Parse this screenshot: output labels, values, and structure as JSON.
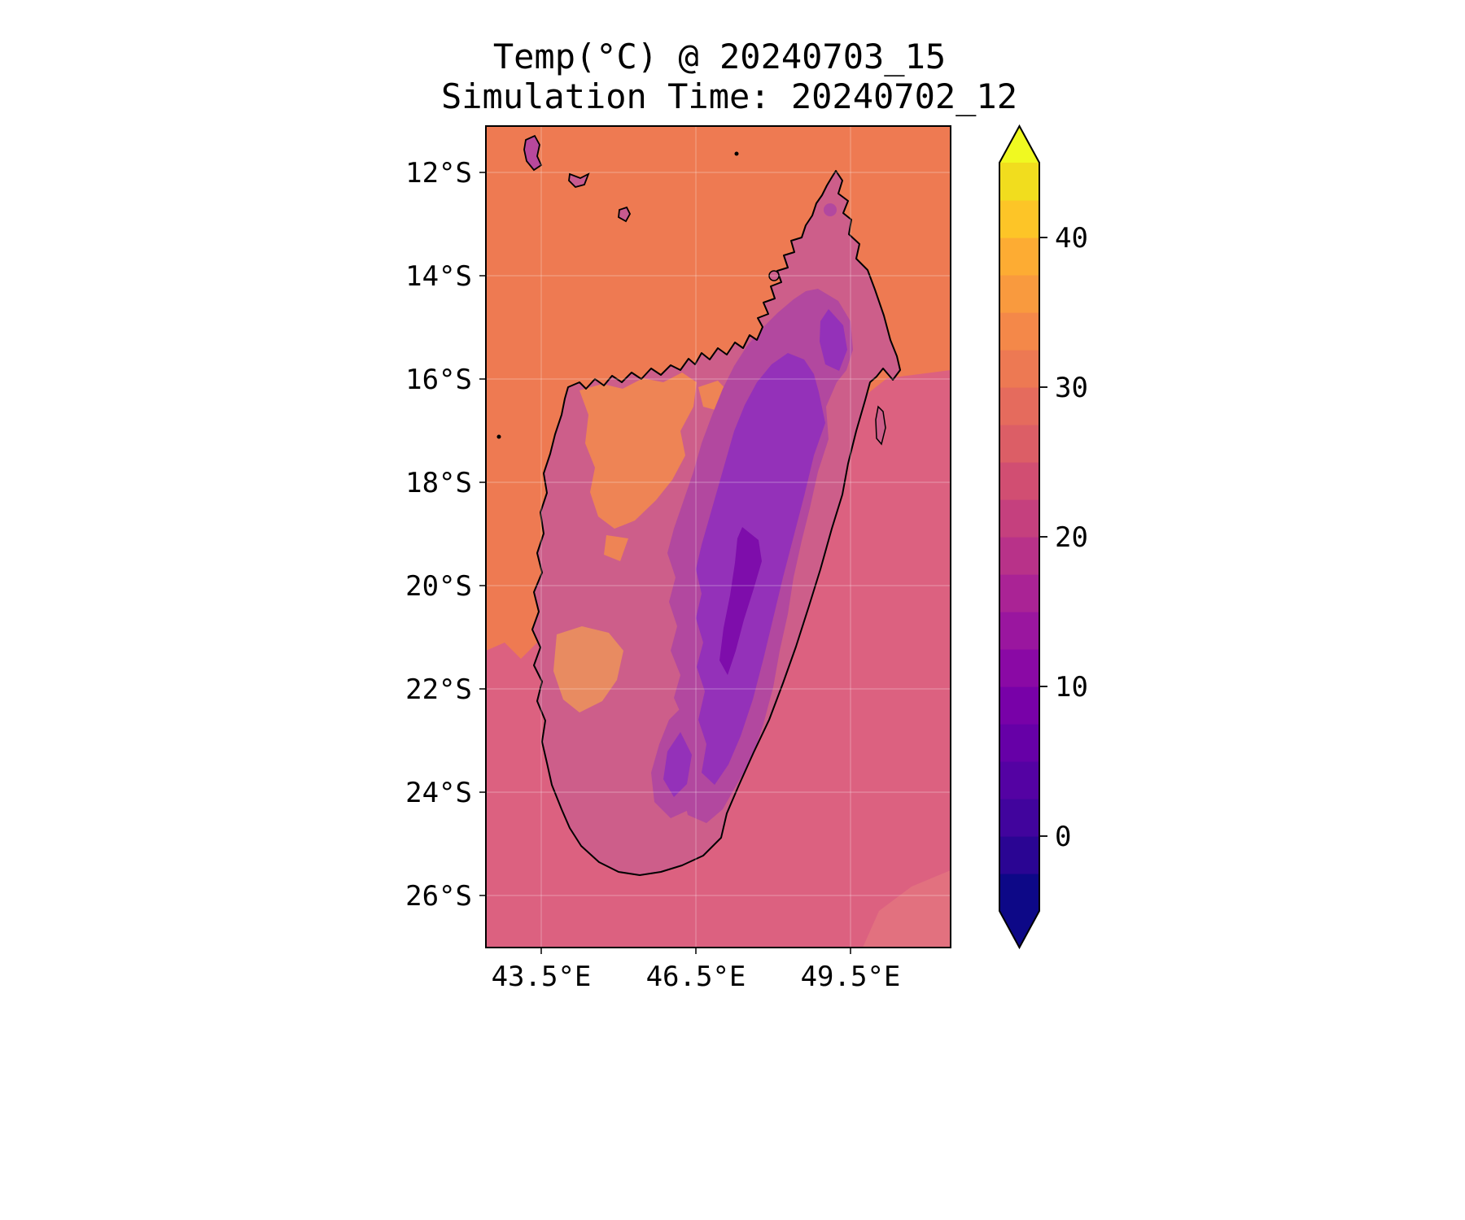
{
  "figure": {
    "title": "Temp(°C) @ 20240703_15",
    "subtitle": "Simulation Time: 20240702_12"
  },
  "chart_data": {
    "type": "heatmap",
    "title": "Temp(°C) @ 20240703_15",
    "subtitle": "Simulation Time: 20240702_12",
    "variable": "Temperature",
    "units": "°C",
    "valid_time": "20240703_15",
    "simulation_time": "20240702_12",
    "region": "Madagascar and surrounding ocean",
    "x_axis": {
      "tick_labels": [
        "43.5°E",
        "46.5°E",
        "49.5°E"
      ],
      "tick_values_deg_e": [
        43.5,
        46.5,
        49.5
      ],
      "range_deg_e": [
        42.4,
        51.4
      ]
    },
    "y_axis": {
      "tick_labels": [
        "12°S",
        "14°S",
        "16°S",
        "18°S",
        "20°S",
        "22°S",
        "24°S",
        "26°S"
      ],
      "tick_values_deg_s": [
        12,
        14,
        16,
        18,
        20,
        22,
        24,
        26
      ],
      "range_deg_s": [
        11.1,
        27.0
      ]
    },
    "colorbar": {
      "cmap": "plasma",
      "range": [
        -5,
        45
      ],
      "band_width": 2.5,
      "tick_labels": [
        "40",
        "30",
        "20",
        "10",
        "0"
      ],
      "tick_values": [
        40,
        30,
        20,
        10,
        0
      ],
      "colors_bottom_to_top": [
        "#0d0887",
        "#2a0593",
        "#41049d",
        "#5402a3",
        "#6600a7",
        "#7801a8",
        "#8a09a5",
        "#9a169f",
        "#aa2395",
        "#b83289",
        "#c5407e",
        "#d14e72",
        "#dc5e66",
        "#e56b5d",
        "#ed7953",
        "#f48849",
        "#f99a3e",
        "#fdac33",
        "#fdc527",
        "#f1dd1e"
      ],
      "under_color": "#0d0887",
      "over_color": "#f0f921"
    },
    "field_estimates_c": {
      "ocean_northwest": 27,
      "ocean_southeast": 23,
      "land_coastal_lowlands": 21,
      "northwest_interior_warm_patch": 27,
      "southwest_warm_patch": 26,
      "central_highlands": 13,
      "highland_cold_core": 8,
      "southern_plateau": 16
    },
    "palette": {
      "ocean_warm": "#ee7a52",
      "ocean_cool": "#dc6180",
      "ocean_cool_light": "#e2717f",
      "land_base": "#cd5e8a",
      "land_warm": "#ee8455",
      "land_warm_soft": "#e88b61",
      "purple_outer": "#b2489f",
      "purple_mid": "#9431b9",
      "purple_core": "#7e0dab",
      "island_fill": "#b8489c",
      "island_fill_2": "#c85a8f",
      "coastline": "#000000",
      "gridline": "#ffffff"
    }
  }
}
